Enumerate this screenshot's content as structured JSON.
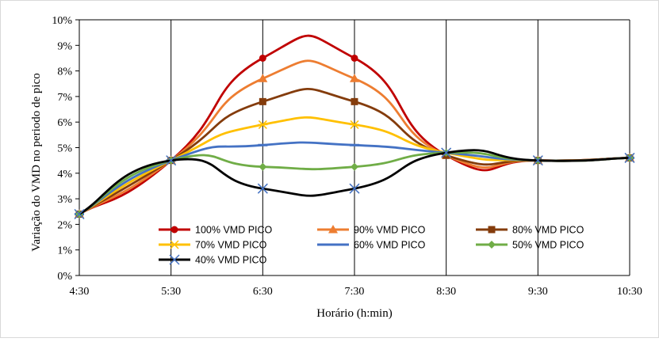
{
  "chart_data": {
    "type": "line",
    "x": [
      "4:30",
      "5:30",
      "6:30",
      "7:30",
      "8:30",
      "9:30",
      "10:30"
    ],
    "xlabel": "Horário (h:min)",
    "ylabel": "Variação  do VMD no periodo de pico",
    "yticks": [
      "0%",
      "1%",
      "2%",
      "3%",
      "4%",
      "5%",
      "6%",
      "7%",
      "8%",
      "9%",
      "10%"
    ],
    "ylim": [
      0,
      10
    ],
    "grid": "vertical",
    "legend_position": "bottom-inside",
    "series": [
      {
        "name": "100% VMD PICO",
        "color": "#c00000",
        "marker": "circle",
        "values": [
          2.4,
          4.5,
          8.5,
          8.5,
          4.7,
          4.5,
          4.6
        ]
      },
      {
        "name": "90% VMD PICO",
        "color": "#ed7d31",
        "marker": "triangle",
        "values": [
          2.4,
          4.5,
          7.7,
          7.7,
          4.7,
          4.5,
          4.6
        ]
      },
      {
        "name": "80% VMD PICO",
        "color": "#843c0c",
        "marker": "square",
        "values": [
          2.4,
          4.5,
          6.8,
          6.8,
          4.7,
          4.5,
          4.6
        ]
      },
      {
        "name": "70% VMD PICO",
        "color": "#ffc000",
        "marker": "asterisk",
        "values": [
          2.4,
          4.5,
          5.9,
          5.9,
          4.8,
          4.5,
          4.6
        ]
      },
      {
        "name": "60% VMD PICO",
        "color": "#4472c4",
        "marker": "dash",
        "values": [
          2.4,
          4.5,
          5.1,
          5.1,
          4.8,
          4.5,
          4.6
        ]
      },
      {
        "name": "50% VMD PICO",
        "color": "#70ad47",
        "marker": "diamond",
        "values": [
          2.4,
          4.5,
          4.25,
          4.25,
          4.8,
          4.5,
          4.6
        ]
      },
      {
        "name": "40% VMD PICO",
        "color": "#000000",
        "marker": "xstar",
        "values": [
          2.4,
          4.5,
          3.4,
          3.4,
          4.8,
          4.5,
          4.6
        ]
      }
    ]
  }
}
